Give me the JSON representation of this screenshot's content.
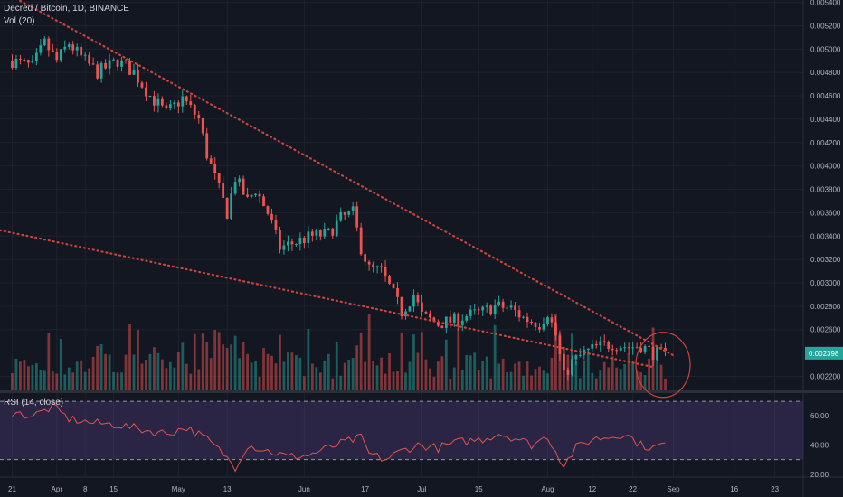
{
  "legend": {
    "symbol_title": "Decred / Bitcoin, 1D, BINANCE",
    "volume_label": "Vol (20)",
    "rsi_label": "RSI (14, close)"
  },
  "colors": {
    "background": "#131722",
    "up": "#26a69a",
    "down": "#ef5350",
    "grid": "#1e222d",
    "rsi_line": "#e0544b",
    "rsi_band": "#7e57c2",
    "trendline": "#d0423a",
    "last_price_label": "#26a69a"
  },
  "chart_data": [
    {
      "type": "candlestick",
      "title": "Decred / Bitcoin, 1D, BINANCE",
      "y_ticks": [
        "0.005400",
        "0.005200",
        "0.005000",
        "0.004800",
        "0.004600",
        "0.004400",
        "0.004200",
        "0.004000",
        "0.003800",
        "0.003600",
        "0.003400",
        "0.003200",
        "0.003000",
        "0.002800",
        "0.002600",
        "0.002200"
      ],
      "last_price": "0.002398",
      "ylim": [
        0.00208,
        0.00542
      ],
      "x_ticks": [
        "21",
        "Apr",
        "8",
        "15",
        "May",
        "13",
        "Jun",
        "17",
        "Jul",
        "15",
        "Aug",
        "12",
        "22",
        "Sep",
        "16",
        "23"
      ],
      "x_tick_days": [
        0,
        11,
        18,
        25,
        41,
        53,
        72,
        87,
        101,
        115,
        132,
        143,
        153,
        163,
        178,
        188
      ],
      "day_range": [
        -3,
        195
      ],
      "keyframes": [
        [
          0,
          0.0049
        ],
        [
          5,
          0.00485
        ],
        [
          8,
          0.00505
        ],
        [
          11,
          0.0049
        ],
        [
          14,
          0.00505
        ],
        [
          17,
          0.00493
        ],
        [
          21,
          0.0048
        ],
        [
          26,
          0.0049
        ],
        [
          30,
          0.0048
        ],
        [
          34,
          0.0046
        ],
        [
          38,
          0.00445
        ],
        [
          42,
          0.00458
        ],
        [
          46,
          0.0044
        ],
        [
          48,
          0.0041
        ],
        [
          50,
          0.0039
        ],
        [
          53,
          0.0036
        ],
        [
          55,
          0.0039
        ],
        [
          58,
          0.0037
        ],
        [
          60,
          0.0038
        ],
        [
          63,
          0.0036
        ],
        [
          66,
          0.0033
        ],
        [
          70,
          0.00335
        ],
        [
          74,
          0.0034
        ],
        [
          78,
          0.00342
        ],
        [
          81,
          0.00355
        ],
        [
          84,
          0.0036
        ],
        [
          86,
          0.0033
        ],
        [
          88,
          0.00312
        ],
        [
          91,
          0.0031
        ],
        [
          94,
          0.0029
        ],
        [
          96,
          0.00275
        ],
        [
          99,
          0.0029
        ],
        [
          101,
          0.00272
        ],
        [
          105,
          0.00265
        ],
        [
          109,
          0.00268
        ],
        [
          112,
          0.00272
        ],
        [
          116,
          0.00275
        ],
        [
          119,
          0.0028
        ],
        [
          123,
          0.00278
        ],
        [
          126,
          0.0027
        ],
        [
          130,
          0.00265
        ],
        [
          132,
          0.00275
        ],
        [
          134,
          0.00255
        ],
        [
          136,
          0.0022
        ],
        [
          138,
          0.00232
        ],
        [
          141,
          0.0024
        ],
        [
          144,
          0.00245
        ],
        [
          148,
          0.00248
        ],
        [
          152,
          0.00245
        ],
        [
          155,
          0.00246
        ],
        [
          158,
          0.0024
        ],
        [
          161,
          0.00238
        ]
      ],
      "volume_max_scale": 1.0,
      "trendlines": [
        {
          "from": [
            0,
            0.00545
          ],
          "to": [
            163,
            0.00238
          ]
        },
        {
          "from": [
            -3,
            0.00345
          ],
          "to": [
            158,
            0.00228
          ]
        }
      ],
      "annotation": "circle"
    },
    {
      "type": "line",
      "title": "RSI (14, close)",
      "y_ticks": [
        "60.00",
        "40.00",
        "20.00"
      ],
      "ylim": [
        18,
        75
      ],
      "band": [
        30,
        70
      ],
      "keyframes": [
        [
          0,
          62
        ],
        [
          5,
          60
        ],
        [
          10,
          66
        ],
        [
          14,
          58
        ],
        [
          20,
          55
        ],
        [
          26,
          54
        ],
        [
          33,
          50
        ],
        [
          38,
          48
        ],
        [
          43,
          52
        ],
        [
          48,
          44
        ],
        [
          52,
          34
        ],
        [
          55,
          25
        ],
        [
          58,
          40
        ],
        [
          63,
          36
        ],
        [
          68,
          32
        ],
        [
          73,
          33
        ],
        [
          78,
          38
        ],
        [
          82,
          42
        ],
        [
          86,
          45
        ],
        [
          88,
          34
        ],
        [
          92,
          30
        ],
        [
          96,
          36
        ],
        [
          100,
          40
        ],
        [
          105,
          38
        ],
        [
          110,
          42
        ],
        [
          116,
          44
        ],
        [
          120,
          48
        ],
        [
          125,
          44
        ],
        [
          128,
          40
        ],
        [
          132,
          46
        ],
        [
          134,
          36
        ],
        [
          136,
          26
        ],
        [
          139,
          38
        ],
        [
          143,
          44
        ],
        [
          148,
          46
        ],
        [
          151,
          48
        ],
        [
          155,
          40
        ],
        [
          158,
          38
        ],
        [
          161,
          41
        ]
      ]
    }
  ]
}
